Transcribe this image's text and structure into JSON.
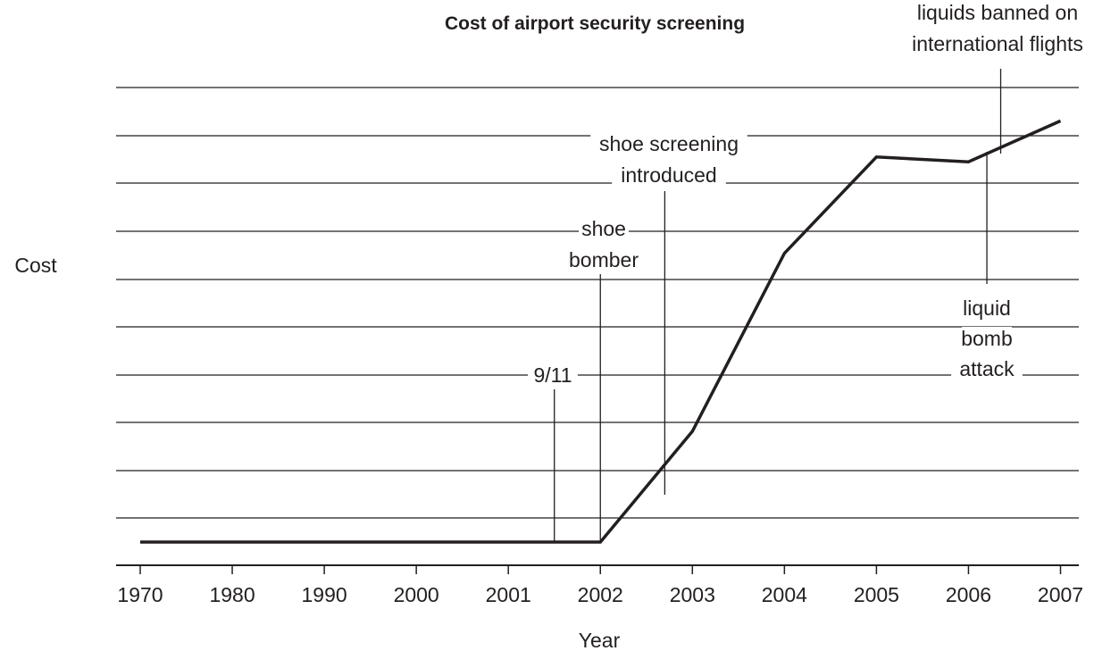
{
  "chart_data": {
    "type": "line",
    "title": "Cost of airport security screening",
    "xlabel": "Year",
    "ylabel": "Cost",
    "categories": [
      "1970",
      "1980",
      "1990",
      "2000",
      "2001",
      "2002",
      "2003",
      "2004",
      "2005",
      "2006",
      "2007"
    ],
    "y_scale": "unlabeled (no tick values shown)",
    "ylim": [
      0,
      10
    ],
    "grid": true,
    "series": [
      {
        "points": [
          {
            "x": "1970",
            "y": 0.25
          },
          {
            "x": "2002",
            "y": 0.25
          },
          {
            "x": "2003",
            "y": 2.55
          },
          {
            "x": "2004",
            "y": 6.25
          },
          {
            "x": "2005",
            "y": 8.25
          },
          {
            "x": "2006",
            "y": 8.15
          },
          {
            "x": "2007",
            "y": 9.0
          }
        ]
      }
    ],
    "annotations": [
      {
        "id": "ann-911",
        "lines": [
          "9/11"
        ],
        "x_year": 2001.5
      },
      {
        "id": "ann-shoe-bomber",
        "lines": [
          "shoe",
          "bomber"
        ],
        "x_year": 2002.0
      },
      {
        "id": "ann-shoe-screening",
        "lines": [
          "shoe screening",
          "introduced"
        ],
        "x_year": 2002.7
      },
      {
        "id": "ann-liquid-bomb",
        "lines": [
          "liquid",
          "bomb",
          "attack"
        ],
        "x_year": 2006.2
      },
      {
        "id": "ann-liquids-banned",
        "lines": [
          "liquids banned on",
          "international flights"
        ],
        "x_year": 2006.35
      }
    ]
  }
}
